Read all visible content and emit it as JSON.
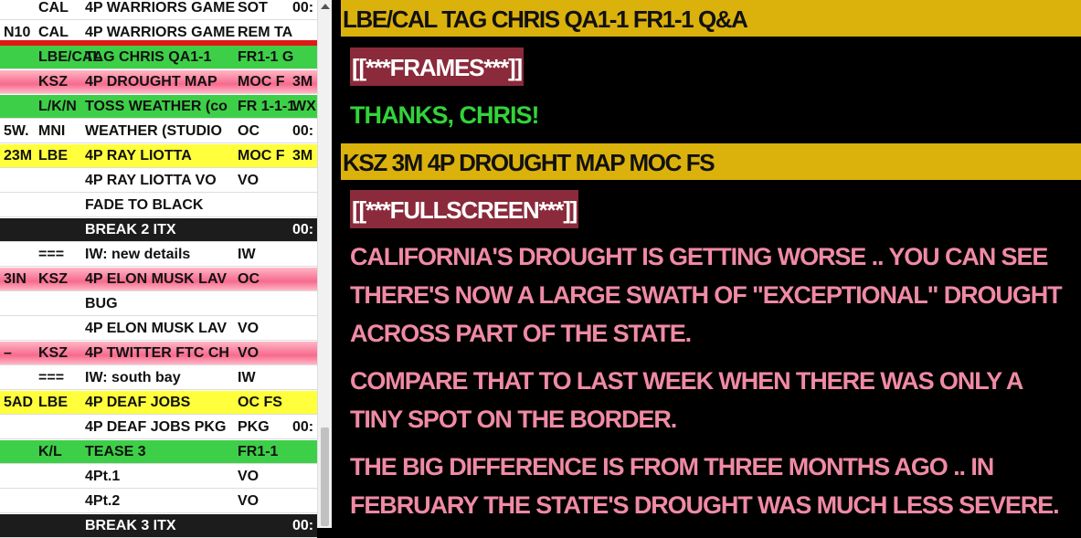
{
  "rundown": {
    "rows": [
      {
        "a": "",
        "b": "CAL",
        "c": "4P WARRIORS GAME",
        "d": "SOT",
        "e": "00:",
        "bg": "white"
      },
      {
        "a": "N10",
        "b": "CAL",
        "c": "4P WARRIORS GAME",
        "d": "REM TA",
        "e": "",
        "bg": "white"
      },
      {
        "a": "",
        "b": "LBE/CAL",
        "c": "TAG CHRIS QA1-1",
        "d": "FR1-1 G",
        "e": "",
        "bg": "green"
      },
      {
        "a": "",
        "b": "KSZ",
        "c": "4P DROUGHT MAP",
        "d": "MOC F",
        "e": "3M",
        "bg": "pink"
      },
      {
        "a": "",
        "b": "L/K/N",
        "c": "TOSS WEATHER (co",
        "d": "FR 1-1-1",
        "e": "WX",
        "bg": "green"
      },
      {
        "a": "5W.",
        "b": "MNI",
        "c": "WEATHER (STUDIO",
        "d": "OC",
        "e": "00:",
        "bg": "white"
      },
      {
        "a": "23M",
        "b": "LBE",
        "c": "4P RAY LIOTTA",
        "d": "MOC F",
        "e": "3M",
        "bg": "yellow"
      },
      {
        "a": "",
        "b": "",
        "c": "4P RAY LIOTTA VO",
        "d": "VO",
        "e": "",
        "bg": "white"
      },
      {
        "a": "",
        "b": "",
        "c": "FADE TO BLACK",
        "d": "",
        "e": "",
        "bg": "white"
      },
      {
        "a": "",
        "b": "",
        "c": "BREAK 2 ITX",
        "d": "",
        "e": "00:",
        "bg": "black"
      },
      {
        "a": "",
        "b": "===",
        "c": "IW: new details",
        "d": "IW",
        "e": "",
        "bg": "white"
      },
      {
        "a": "3IN",
        "b": "KSZ",
        "c": "4P ELON MUSK LAV",
        "d": "OC",
        "e": "",
        "bg": "pink"
      },
      {
        "a": "",
        "b": "",
        "c": "BUG",
        "d": "",
        "e": "",
        "bg": "white"
      },
      {
        "a": "",
        "b": "",
        "c": "4P ELON MUSK LAV",
        "d": "VO",
        "e": "",
        "bg": "white"
      },
      {
        "a": "–",
        "b": "KSZ",
        "c": "4P TWITTER FTC CH",
        "d": "VO",
        "e": "",
        "bg": "pink"
      },
      {
        "a": "",
        "b": "===",
        "c": "IW: south bay",
        "d": "IW",
        "e": "",
        "bg": "white"
      },
      {
        "a": "5AD",
        "b": "LBE",
        "c": "4P DEAF JOBS",
        "d": "OC FS",
        "e": "",
        "bg": "yellow"
      },
      {
        "a": "",
        "b": "",
        "c": "4P DEAF JOBS PKG",
        "d": "PKG",
        "e": "00:",
        "bg": "white"
      },
      {
        "a": "",
        "b": "K/L",
        "c": "TEASE 3",
        "d": "FR1-1",
        "e": "",
        "bg": "green"
      },
      {
        "a": "",
        "b": "",
        "c": "4Pt.1",
        "d": "VO",
        "e": "",
        "bg": "white"
      },
      {
        "a": "",
        "b": "",
        "c": "4Pt.2",
        "d": "VO",
        "e": "",
        "bg": "white"
      },
      {
        "a": "",
        "b": "",
        "c": "BREAK 3 ITX",
        "d": "",
        "e": "00:",
        "bg": "black"
      }
    ]
  },
  "script": {
    "slug1": "LBE/CAL TAG CHRIS QA1-1 FR1-1 Q&A",
    "cue1": "[[***FRAMES***]]",
    "thanks": "THANKS, CHRIS!",
    "slug2": "KSZ 3M 4P DROUGHT MAP MOC FS",
    "cue2": "[[***FULLSCREEN***]]",
    "para1": "CALIFORNIA'S DROUGHT IS GETTING WORSE .. YOU CAN SEE THERE'S NOW A LARGE SWATH OF \"EXCEPTIONAL\" DROUGHT ACROSS PART OF THE STATE.",
    "para2": "COMPARE THAT TO LAST WEEK WHEN THERE WAS ONLY A TINY SPOT ON THE BORDER.",
    "para3": "THE BIG DIFFERENCE IS FROM THREE MONTHS AGO .. IN FEBRUARY THE STATE'S DROUGHT WAS MUCH LESS SEVERE."
  },
  "colors": {
    "slug_bar": "#dbb10c",
    "cue_bg": "#8a2a3a",
    "thanks_text": "#33d33a",
    "script_text": "#f08aa4",
    "row_green": "#3ecf48",
    "row_pink": "#f76a8d",
    "row_yellow": "#ffff3c"
  }
}
